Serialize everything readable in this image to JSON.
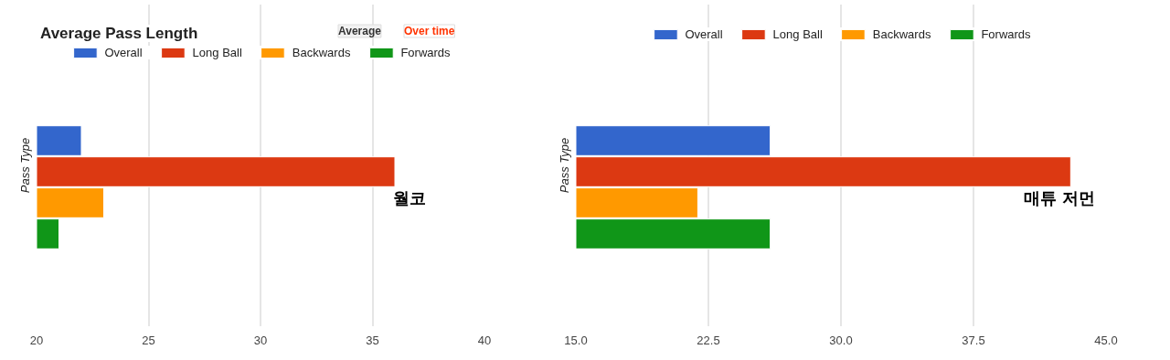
{
  "chart_data": [
    {
      "type": "bar",
      "orientation": "horizontal",
      "title": "Average Pass Length",
      "ylabel": "Pass Type",
      "categories": [
        null
      ],
      "series": [
        {
          "name": "Overall",
          "color": "#3366cc",
          "values": [
            22.0
          ]
        },
        {
          "name": "Long Ball",
          "color": "#dc3912",
          "values": [
            36.0
          ]
        },
        {
          "name": "Backwards",
          "color": "#ff9900",
          "values": [
            23.0
          ]
        },
        {
          "name": "Forwards",
          "color": "#109618",
          "values": [
            21.0
          ]
        }
      ],
      "xlim": [
        20,
        40
      ],
      "xticks": [
        20,
        25,
        30,
        35,
        40
      ],
      "grid": "x",
      "legend": "top",
      "annotations": [
        "Average",
        "Over time",
        "월코"
      ]
    },
    {
      "type": "bar",
      "orientation": "horizontal",
      "ylabel": "Pass Type",
      "categories": [
        null
      ],
      "series": [
        {
          "name": "Overall",
          "color": "#3366cc",
          "values": [
            26.0
          ]
        },
        {
          "name": "Long Ball",
          "color": "#dc3912",
          "values": [
            43.0
          ]
        },
        {
          "name": "Backwards",
          "color": "#ff9900",
          "values": [
            21.9
          ]
        },
        {
          "name": "Forwards",
          "color": "#109618",
          "values": [
            26.0
          ]
        }
      ],
      "xlim": [
        15,
        45
      ],
      "xticks": [
        {
          "value": 15,
          "label": "15.0"
        },
        {
          "value": 22.5,
          "label": "22.5"
        },
        {
          "value": 30,
          "label": "30.0"
        },
        {
          "value": 37.5,
          "label": "37.5"
        },
        {
          "value": 45,
          "label": "45.0"
        }
      ],
      "grid": "x",
      "legend": "top",
      "annotations": [
        "매튜 저먼"
      ]
    }
  ]
}
